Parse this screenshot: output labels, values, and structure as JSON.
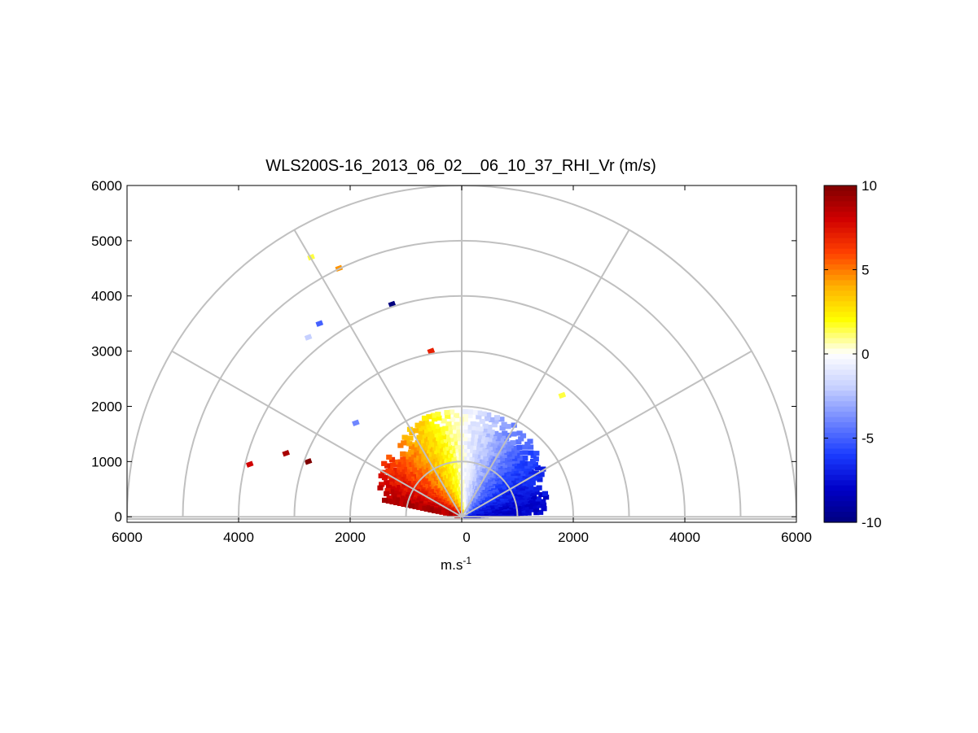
{
  "chart_data": {
    "type": "heatmap",
    "title": "WLS200S-16_2013_06_02__06_10_37_RHI_Vr (m/s)",
    "xlabel_base": "m.s",
    "xlabel_exp": "-1",
    "ylabel": "",
    "xlim": [
      -6000,
      6000
    ],
    "ylim": [
      -100,
      6000
    ],
    "x_ticks": [
      {
        "value": -6000,
        "label": "6000"
      },
      {
        "value": -4000,
        "label": "4000"
      },
      {
        "value": -2000,
        "label": "2000"
      },
      {
        "value": 0,
        "label": "0"
      },
      {
        "value": 2000,
        "label": "2000"
      },
      {
        "value": 4000,
        "label": "4000"
      },
      {
        "value": 6000,
        "label": "6000"
      }
    ],
    "y_ticks": [
      {
        "value": 0,
        "label": "0"
      },
      {
        "value": 1000,
        "label": "1000"
      },
      {
        "value": 2000,
        "label": "2000"
      },
      {
        "value": 3000,
        "label": "3000"
      },
      {
        "value": 4000,
        "label": "4000"
      },
      {
        "value": 5000,
        "label": "5000"
      },
      {
        "value": 6000,
        "label": "6000"
      }
    ],
    "polar_grid": {
      "ranges": [
        1000,
        2000,
        3000,
        4000,
        5000,
        6000
      ],
      "spoke_angles_deg": [
        0,
        30,
        60,
        90,
        120,
        150,
        180
      ],
      "color": "#c0c0c0"
    },
    "colorbar": {
      "min": -10,
      "max": 10,
      "ticks": [
        {
          "value": 10,
          "label": "10"
        },
        {
          "value": 5,
          "label": "5"
        },
        {
          "value": 0,
          "label": "0"
        },
        {
          "value": -5,
          "label": "-5"
        },
        {
          "value": -10,
          "label": "-10"
        }
      ],
      "colors": [
        "#00007f",
        "#0000c8",
        "#1a3cff",
        "#6f86ff",
        "#c6d0ff",
        "#ffffff",
        "#ffff00",
        "#ffb000",
        "#ff4000",
        "#d00000",
        "#7f0000"
      ]
    },
    "wedge": {
      "description_range_m": [
        0,
        1900
      ],
      "angle_deg": [
        3,
        170
      ],
      "velocity_at_0deg": -8,
      "velocity_at_90deg": 0,
      "velocity_at_180deg": 10
    },
    "outliers": [
      {
        "x": -2700,
        "y": 4700,
        "v": 1.5
      },
      {
        "x": -2200,
        "y": 4500,
        "v": 4.5
      },
      {
        "x": -1250,
        "y": 3850,
        "v": -10
      },
      {
        "x": -2550,
        "y": 3500,
        "v": -5
      },
      {
        "x": -2750,
        "y": 3250,
        "v": -2
      },
      {
        "x": -550,
        "y": 3000,
        "v": 7
      },
      {
        "x": -1900,
        "y": 1700,
        "v": -4
      },
      {
        "x": -3800,
        "y": 950,
        "v": 8
      },
      {
        "x": -3150,
        "y": 1150,
        "v": 9
      },
      {
        "x": -2750,
        "y": 1000,
        "v": 10
      },
      {
        "x": 1800,
        "y": 2200,
        "v": 1.5
      }
    ]
  }
}
